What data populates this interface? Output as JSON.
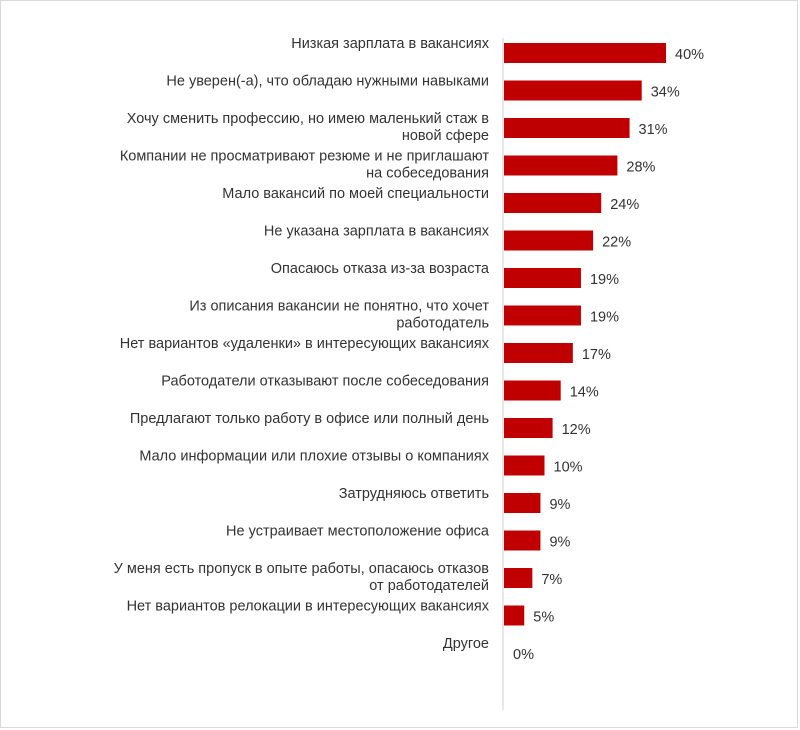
{
  "chart_data": {
    "type": "bar",
    "orientation": "horizontal",
    "bar_color": "#C00000",
    "xlim": [
      0,
      40
    ],
    "grid": false,
    "value_suffix": "%",
    "categories": [
      [
        "Низкая зарплата в вакансиях"
      ],
      [
        "Не уверен(-а), что обладаю нужными навыками"
      ],
      [
        "Хочу сменить профессию, но имею маленький стаж в",
        "новой сфере"
      ],
      [
        "Компании не просматривают резюме и не приглашают",
        "на собеседования"
      ],
      [
        "Мало вакансий по моей специальности"
      ],
      [
        "Не указана зарплата в вакансиях"
      ],
      [
        "Опасаюсь отказа из-за возраста"
      ],
      [
        "Из описания вакансии не понятно, что хочет",
        "работодатель"
      ],
      [
        "Нет вариантов «удаленки» в интересующих вакансиях"
      ],
      [
        "Работодатели отказывают после собеседования"
      ],
      [
        "Предлагают только работу в офисе или полный день"
      ],
      [
        "Мало информации или плохие отзывы о компаниях"
      ],
      [
        "Затрудняюсь ответить"
      ],
      [
        "Не устраивает местоположение офиса"
      ],
      [
        "У меня есть пропуск в опыте работы, опасаюсь отказов",
        "от работодателей"
      ],
      [
        "Нет вариантов релокации в интересующих вакансиях"
      ],
      [
        "Другое"
      ]
    ],
    "values": [
      40,
      34,
      31,
      28,
      24,
      22,
      19,
      19,
      17,
      14,
      12,
      10,
      9,
      9,
      7,
      5,
      0
    ]
  }
}
